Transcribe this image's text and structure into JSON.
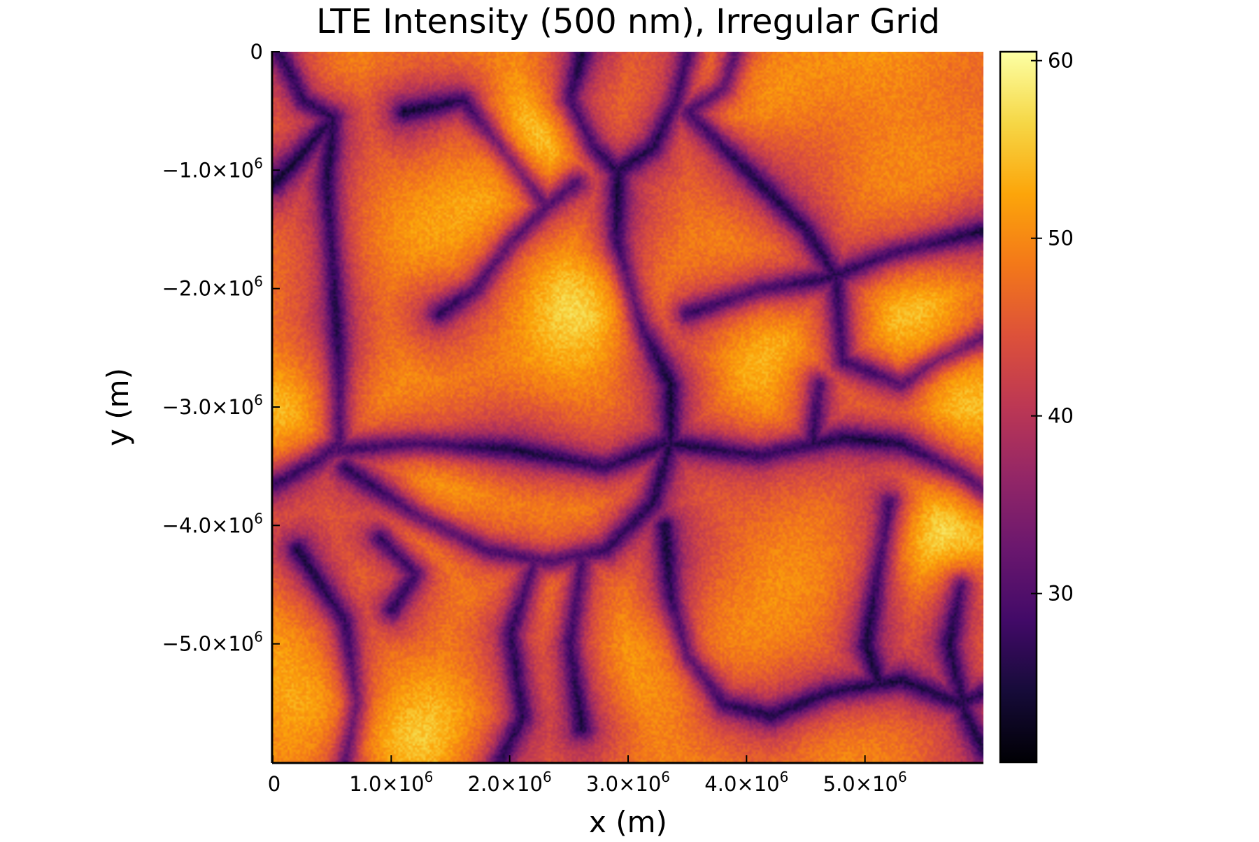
{
  "chart_data": {
    "type": "heatmap",
    "title": "LTE Intensity (500 nm), Irregular Grid",
    "xlabel": "x (m)",
    "ylabel": "y (m)",
    "xlim": [
      0,
      6000000
    ],
    "ylim": [
      -6000000,
      0
    ],
    "x_ticks": [
      {
        "value": 0,
        "mantissa": "0",
        "exp": ""
      },
      {
        "value": 1000000,
        "mantissa": "1.0×10",
        "exp": "6"
      },
      {
        "value": 2000000,
        "mantissa": "2.0×10",
        "exp": "6"
      },
      {
        "value": 3000000,
        "mantissa": "3.0×10",
        "exp": "6"
      },
      {
        "value": 4000000,
        "mantissa": "4.0×10",
        "exp": "6"
      },
      {
        "value": 5000000,
        "mantissa": "5.0×10",
        "exp": "6"
      }
    ],
    "y_ticks": [
      {
        "value": 0,
        "mantissa": "0",
        "exp": ""
      },
      {
        "value": -1000000,
        "mantissa": "−1.0×10",
        "exp": "6"
      },
      {
        "value": -2000000,
        "mantissa": "−2.0×10",
        "exp": "6"
      },
      {
        "value": -3000000,
        "mantissa": "−3.0×10",
        "exp": "6"
      },
      {
        "value": -4000000,
        "mantissa": "−4.0×10",
        "exp": "6"
      },
      {
        "value": -5000000,
        "mantissa": "−5.0×10",
        "exp": "6"
      }
    ],
    "colorbar": {
      "colormap": "inferno",
      "range": [
        20.5,
        60.5
      ],
      "ticks": [
        30,
        40,
        50,
        60
      ],
      "tick_labels": [
        "30",
        "40",
        "50",
        "60"
      ]
    },
    "grid": false,
    "legend": "none",
    "field": {
      "description": "solar granulation intensity pattern: bright orange-yellow granules separated by dark purple intergranular lanes",
      "lanes_data_units": [
        [
          [
            50000.0,
            0
          ],
          [
            250000.0,
            -400000.0
          ],
          [
            500000.0,
            -550000.0
          ],
          [
            450000.0,
            -1100000.0
          ],
          [
            500000.0,
            -1800000.0
          ],
          [
            550000.0,
            -2600000.0
          ],
          [
            550000.0,
            -3300000.0
          ],
          [
            350000.0,
            -3450000.0
          ],
          [
            0,
            -3650000.0
          ]
        ],
        [
          [
            0,
            -1100000.0
          ],
          [
            200000.0,
            -900000.0
          ],
          [
            450000.0,
            -600000.0
          ]
        ],
        [
          [
            550000.0,
            -3350000.0
          ],
          [
            1200000.0,
            -3300000.0
          ],
          [
            2000000.0,
            -3350000.0
          ],
          [
            2800000.0,
            -3500000.0
          ],
          [
            3300000.0,
            -3300000.0
          ]
        ],
        [
          [
            600000.0,
            -3500000.0
          ],
          [
            1200000.0,
            -3900000.0
          ],
          [
            1800000.0,
            -4200000.0
          ],
          [
            2300000.0,
            -4300000.0
          ],
          [
            2800000.0,
            -4200000.0
          ],
          [
            3200000.0,
            -3800000.0
          ],
          [
            3350000.0,
            -3300000.0
          ]
        ],
        [
          [
            3350000.0,
            -3300000.0
          ],
          [
            3350000.0,
            -2800000.0
          ],
          [
            3100000.0,
            -2300000.0
          ],
          [
            2900000.0,
            -1600000.0
          ],
          [
            2900000.0,
            -1000000.0
          ],
          [
            3200000.0,
            -800000.0
          ],
          [
            3400000.0,
            -400000.0
          ],
          [
            3500000.0,
            0
          ]
        ],
        [
          [
            3350000.0,
            -3300000.0
          ],
          [
            4100000.0,
            -3400000.0
          ],
          [
            4800000.0,
            -3250000.0
          ],
          [
            5300000.0,
            -3300000.0
          ],
          [
            5800000.0,
            -3550000.0
          ],
          [
            6000000.0,
            -3700000.0
          ]
        ],
        [
          [
            3500000.0,
            -2200000.0
          ],
          [
            4100000.0,
            -2000000.0
          ],
          [
            4700000.0,
            -1900000.0
          ],
          [
            5200000.0,
            -1700000.0
          ],
          [
            5600000.0,
            -1600000.0
          ],
          [
            6000000.0,
            -1500000.0
          ]
        ],
        [
          [
            3500000.0,
            -500000.0
          ],
          [
            4000000.0,
            -1000000.0
          ],
          [
            4500000.0,
            -1500000.0
          ],
          [
            4750000.0,
            -1900000.0
          ],
          [
            4800000.0,
            -2600000.0
          ],
          [
            5300000.0,
            -2800000.0
          ],
          [
            5600000.0,
            -2600000.0
          ],
          [
            6000000.0,
            -2400000.0
          ]
        ],
        [
          [
            4600000.0,
            -2800000.0
          ],
          [
            4550000.0,
            -3300000.0
          ]
        ],
        [
          [
            3300000.0,
            -4000000.0
          ],
          [
            3350000.0,
            -4600000.0
          ],
          [
            3500000.0,
            -5100000.0
          ],
          [
            3800000.0,
            -5500000.0
          ],
          [
            4200000.0,
            -5600000.0
          ],
          [
            4700000.0,
            -5400000.0
          ],
          [
            5300000.0,
            -5300000.0
          ],
          [
            5800000.0,
            -5500000.0
          ],
          [
            6000000.0,
            -5400000.0
          ]
        ],
        [
          [
            5200000.0,
            -3800000.0
          ],
          [
            5100000.0,
            -4400000.0
          ],
          [
            5000000.0,
            -5000000.0
          ],
          [
            5100000.0,
            -5300000.0
          ]
        ],
        [
          [
            2200000.0,
            -4300000.0
          ],
          [
            2000000.0,
            -4900000.0
          ],
          [
            2100000.0,
            -5600000.0
          ],
          [
            1900000.0,
            -6000000.0
          ]
        ],
        [
          [
            2600000.0,
            -4300000.0
          ],
          [
            2500000.0,
            -5000000.0
          ],
          [
            2600000.0,
            -5700000.0
          ]
        ],
        [
          [
            1400000.0,
            -2200000.0
          ],
          [
            1700000.0,
            -2000000.0
          ],
          [
            2000000.0,
            -1600000.0
          ],
          [
            2300000.0,
            -1300000.0
          ],
          [
            2550000.0,
            -1100000.0
          ]
        ],
        [
          [
            1100000.0,
            -500000.0
          ],
          [
            1600000.0,
            -400000.0
          ],
          [
            2000000.0,
            -900000.0
          ],
          [
            2300000.0,
            -1300000.0
          ]
        ],
        [
          [
            200000.0,
            -4200000.0
          ],
          [
            600000.0,
            -4800000.0
          ],
          [
            700000.0,
            -5500000.0
          ],
          [
            600000.0,
            -6000000.0
          ]
        ],
        [
          [
            900000.0,
            -4100000.0
          ],
          [
            1200000.0,
            -4400000.0
          ],
          [
            1000000.0,
            -4700000.0
          ]
        ],
        [
          [
            5800000.0,
            -4500000.0
          ],
          [
            5700000.0,
            -5000000.0
          ],
          [
            5850000.0,
            -5600000.0
          ],
          [
            6000000.0,
            -5900000.0
          ]
        ],
        [
          [
            2600000.0,
            0
          ],
          [
            2500000.0,
            -400000.0
          ],
          [
            2700000.0,
            -800000.0
          ],
          [
            2900000.0,
            -1000000.0
          ]
        ],
        [
          [
            3900000.0,
            0
          ],
          [
            3800000.0,
            -300000.0
          ],
          [
            3500000.0,
            -500000.0
          ]
        ]
      ],
      "bright_spots_data_units": [
        [
          2100000.0,
          -700000.0,
          1.0
        ],
        [
          2750000.0,
          -2100000.0,
          0.95
        ],
        [
          5600000.0,
          -4100000.0,
          1.0
        ],
        [
          150000.0,
          -3000000.0,
          0.85
        ],
        [
          1700000.0,
          -1700000.0,
          0.8
        ],
        [
          500000.0,
          -5400000.0,
          0.85
        ],
        [
          5300000.0,
          -2200000.0,
          0.8
        ],
        [
          3600000.0,
          -5200000.0,
          0.7
        ],
        [
          4200000.0,
          -2500000.0,
          0.7
        ],
        [
          1400000.0,
          -3700000.0,
          0.7
        ],
        [
          4000000.0,
          -200000.0,
          0.6
        ],
        [
          5900000.0,
          -2900000.0,
          0.8
        ],
        [
          1100000.0,
          -5800000.0,
          0.7
        ],
        [
          2300000.0,
          -4500000.0,
          0.7
        ]
      ]
    }
  }
}
